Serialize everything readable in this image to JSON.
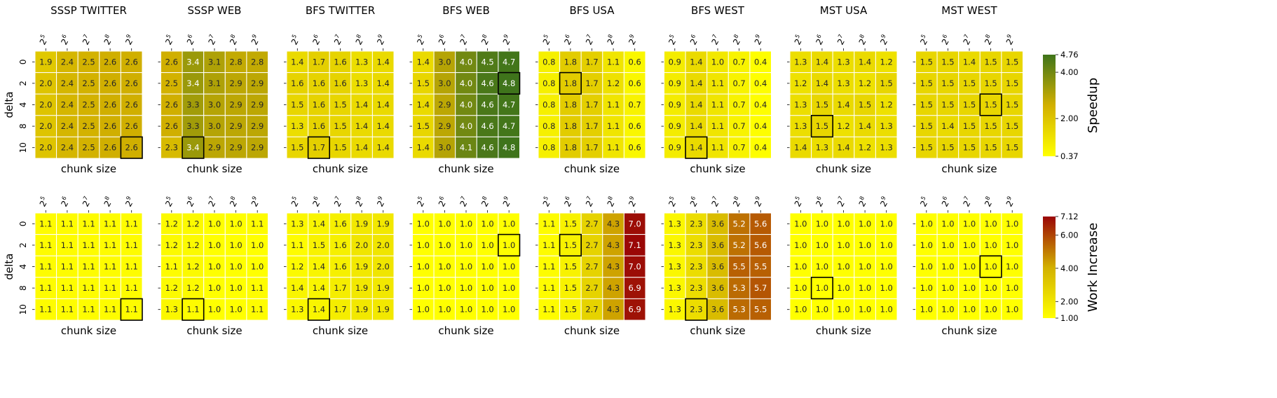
{
  "chart_data": {
    "type": "heatmap",
    "x_ticks": [
      "2^5",
      "2^6",
      "2^7",
      "2^8",
      "2^9"
    ],
    "y_ticks": [
      "0",
      "2",
      "4",
      "8",
      "10"
    ],
    "xlabel": "chunk size",
    "ylabel": "delta",
    "colormap": {
      "low": "#ffff00",
      "mid": "#d2b000",
      "high_speedup": "#3f741b",
      "high_work": "#9a0606"
    },
    "colorbars": [
      {
        "label": "Speedup",
        "min": 0.37,
        "max": 4.76,
        "ticks": [
          "0.37",
          "2.00",
          "4.00",
          "4.76"
        ],
        "tick_values": [
          0.37,
          2.0,
          4.0,
          4.76
        ]
      },
      {
        "label": "Work Increase",
        "min": 1.0,
        "max": 7.12,
        "ticks": [
          "1.00",
          "2.00",
          "4.00",
          "6.00",
          "7.12"
        ],
        "tick_values": [
          1.0,
          2.0,
          4.0,
          6.0,
          7.12
        ]
      }
    ],
    "rows": [
      {
        "metric": "Speedup",
        "panels": [
          {
            "title": "SSSP TWITTER",
            "highlight": [
              4,
              4
            ],
            "values": [
              [
                1.9,
                2.4,
                2.5,
                2.6,
                2.6
              ],
              [
                2.0,
                2.4,
                2.5,
                2.6,
                2.6
              ],
              [
                2.0,
                2.4,
                2.5,
                2.6,
                2.6
              ],
              [
                2.0,
                2.4,
                2.5,
                2.6,
                2.6
              ],
              [
                2.0,
                2.4,
                2.5,
                2.6,
                2.6
              ]
            ]
          },
          {
            "title": "SSSP WEB",
            "highlight": [
              4,
              1
            ],
            "values": [
              [
                2.6,
                3.4,
                3.1,
                2.8,
                2.8
              ],
              [
                2.5,
                3.4,
                3.1,
                2.9,
                2.9
              ],
              [
                2.6,
                3.3,
                3.0,
                2.9,
                2.9
              ],
              [
                2.6,
                3.3,
                3.0,
                2.9,
                2.9
              ],
              [
                2.3,
                3.4,
                2.9,
                2.9,
                2.9
              ]
            ]
          },
          {
            "title": "BFS TWITTER",
            "highlight": [
              4,
              1
            ],
            "values": [
              [
                1.4,
                1.7,
                1.6,
                1.3,
                1.4
              ],
              [
                1.6,
                1.6,
                1.6,
                1.3,
                1.4
              ],
              [
                1.5,
                1.6,
                1.5,
                1.4,
                1.4
              ],
              [
                1.3,
                1.6,
                1.5,
                1.4,
                1.4
              ],
              [
                1.5,
                1.7,
                1.5,
                1.4,
                1.4
              ]
            ]
          },
          {
            "title": "BFS WEB",
            "highlight": [
              1,
              4
            ],
            "values": [
              [
                1.4,
                3.0,
                4.0,
                4.5,
                4.7
              ],
              [
                1.5,
                3.0,
                4.0,
                4.6,
                4.8
              ],
              [
                1.4,
                2.9,
                4.0,
                4.6,
                4.7
              ],
              [
                1.5,
                2.9,
                4.0,
                4.6,
                4.7
              ],
              [
                1.4,
                3.0,
                4.1,
                4.6,
                4.8
              ]
            ]
          },
          {
            "title": "BFS USA",
            "highlight": [
              1,
              1
            ],
            "values": [
              [
                0.8,
                1.8,
                1.7,
                1.1,
                0.6
              ],
              [
                0.8,
                1.8,
                1.7,
                1.2,
                0.6
              ],
              [
                0.8,
                1.8,
                1.7,
                1.1,
                0.7
              ],
              [
                0.8,
                1.8,
                1.7,
                1.1,
                0.6
              ],
              [
                0.8,
                1.8,
                1.7,
                1.1,
                0.6
              ]
            ]
          },
          {
            "title": "BFS WEST",
            "highlight": [
              4,
              1
            ],
            "values": [
              [
                0.9,
                1.4,
                1.0,
                0.7,
                0.4
              ],
              [
                0.9,
                1.4,
                1.1,
                0.7,
                0.4
              ],
              [
                0.9,
                1.4,
                1.1,
                0.7,
                0.4
              ],
              [
                0.9,
                1.4,
                1.1,
                0.7,
                0.4
              ],
              [
                0.9,
                1.4,
                1.1,
                0.7,
                0.4
              ]
            ]
          },
          {
            "title": "MST USA",
            "highlight": [
              3,
              1
            ],
            "values": [
              [
                1.3,
                1.4,
                1.3,
                1.4,
                1.2
              ],
              [
                1.2,
                1.4,
                1.3,
                1.2,
                1.5
              ],
              [
                1.3,
                1.5,
                1.4,
                1.5,
                1.2
              ],
              [
                1.3,
                1.5,
                1.2,
                1.4,
                1.3
              ],
              [
                1.4,
                1.3,
                1.4,
                1.2,
                1.3
              ]
            ]
          },
          {
            "title": "MST WEST",
            "highlight": [
              2,
              3
            ],
            "values": [
              [
                1.5,
                1.5,
                1.4,
                1.5,
                1.5
              ],
              [
                1.5,
                1.5,
                1.5,
                1.5,
                1.5
              ],
              [
                1.5,
                1.5,
                1.5,
                1.5,
                1.5
              ],
              [
                1.5,
                1.4,
                1.5,
                1.5,
                1.5
              ],
              [
                1.5,
                1.5,
                1.5,
                1.5,
                1.5
              ]
            ]
          }
        ]
      },
      {
        "metric": "Work Increase",
        "panels": [
          {
            "title": "",
            "highlight": [
              4,
              4
            ],
            "values": [
              [
                1.1,
                1.1,
                1.1,
                1.1,
                1.1
              ],
              [
                1.1,
                1.1,
                1.1,
                1.1,
                1.1
              ],
              [
                1.1,
                1.1,
                1.1,
                1.1,
                1.1
              ],
              [
                1.1,
                1.1,
                1.1,
                1.1,
                1.1
              ],
              [
                1.1,
                1.1,
                1.1,
                1.1,
                1.1
              ]
            ]
          },
          {
            "title": "",
            "highlight": [
              4,
              1
            ],
            "values": [
              [
                1.2,
                1.2,
                1.0,
                1.0,
                1.1
              ],
              [
                1.2,
                1.2,
                1.0,
                1.0,
                1.0
              ],
              [
                1.1,
                1.2,
                1.0,
                1.0,
                1.0
              ],
              [
                1.2,
                1.2,
                1.0,
                1.0,
                1.1
              ],
              [
                1.3,
                1.1,
                1.0,
                1.0,
                1.1
              ]
            ]
          },
          {
            "title": "",
            "highlight": [
              4,
              1
            ],
            "values": [
              [
                1.3,
                1.4,
                1.6,
                1.9,
                1.9
              ],
              [
                1.1,
                1.5,
                1.6,
                2.0,
                2.0
              ],
              [
                1.2,
                1.4,
                1.6,
                1.9,
                2.0
              ],
              [
                1.4,
                1.4,
                1.7,
                1.9,
                1.9
              ],
              [
                1.3,
                1.4,
                1.7,
                1.9,
                1.9
              ]
            ]
          },
          {
            "title": "",
            "highlight": [
              1,
              4
            ],
            "values": [
              [
                1.0,
                1.0,
                1.0,
                1.0,
                1.0
              ],
              [
                1.0,
                1.0,
                1.0,
                1.0,
                1.0
              ],
              [
                1.0,
                1.0,
                1.0,
                1.0,
                1.0
              ],
              [
                1.0,
                1.0,
                1.0,
                1.0,
                1.0
              ],
              [
                1.0,
                1.0,
                1.0,
                1.0,
                1.0
              ]
            ]
          },
          {
            "title": "",
            "highlight": [
              1,
              1
            ],
            "values": [
              [
                1.1,
                1.5,
                2.7,
                4.3,
                7.0
              ],
              [
                1.1,
                1.5,
                2.7,
                4.3,
                7.1
              ],
              [
                1.1,
                1.5,
                2.7,
                4.3,
                7.0
              ],
              [
                1.1,
                1.5,
                2.7,
                4.3,
                6.9
              ],
              [
                1.1,
                1.5,
                2.7,
                4.3,
                6.9
              ]
            ]
          },
          {
            "title": "",
            "highlight": [
              4,
              1
            ],
            "values": [
              [
                1.3,
                2.3,
                3.6,
                5.2,
                5.6
              ],
              [
                1.3,
                2.3,
                3.6,
                5.2,
                5.6
              ],
              [
                1.3,
                2.3,
                3.6,
                5.5,
                5.5
              ],
              [
                1.3,
                2.3,
                3.6,
                5.3,
                5.7
              ],
              [
                1.3,
                2.3,
                3.6,
                5.3,
                5.5
              ]
            ]
          },
          {
            "title": "",
            "highlight": [
              3,
              1
            ],
            "values": [
              [
                1.0,
                1.0,
                1.0,
                1.0,
                1.0
              ],
              [
                1.0,
                1.0,
                1.0,
                1.0,
                1.0
              ],
              [
                1.0,
                1.0,
                1.0,
                1.0,
                1.0
              ],
              [
                1.0,
                1.0,
                1.0,
                1.0,
                1.0
              ],
              [
                1.0,
                1.0,
                1.0,
                1.0,
                1.0
              ]
            ]
          },
          {
            "title": "",
            "highlight": [
              2,
              3
            ],
            "values": [
              [
                1.0,
                1.0,
                1.0,
                1.0,
                1.0
              ],
              [
                1.0,
                1.0,
                1.0,
                1.0,
                1.0
              ],
              [
                1.0,
                1.0,
                1.0,
                1.0,
                1.0
              ],
              [
                1.0,
                1.0,
                1.0,
                1.0,
                1.0
              ],
              [
                1.0,
                1.0,
                1.0,
                1.0,
                1.0
              ]
            ]
          }
        ]
      }
    ]
  }
}
